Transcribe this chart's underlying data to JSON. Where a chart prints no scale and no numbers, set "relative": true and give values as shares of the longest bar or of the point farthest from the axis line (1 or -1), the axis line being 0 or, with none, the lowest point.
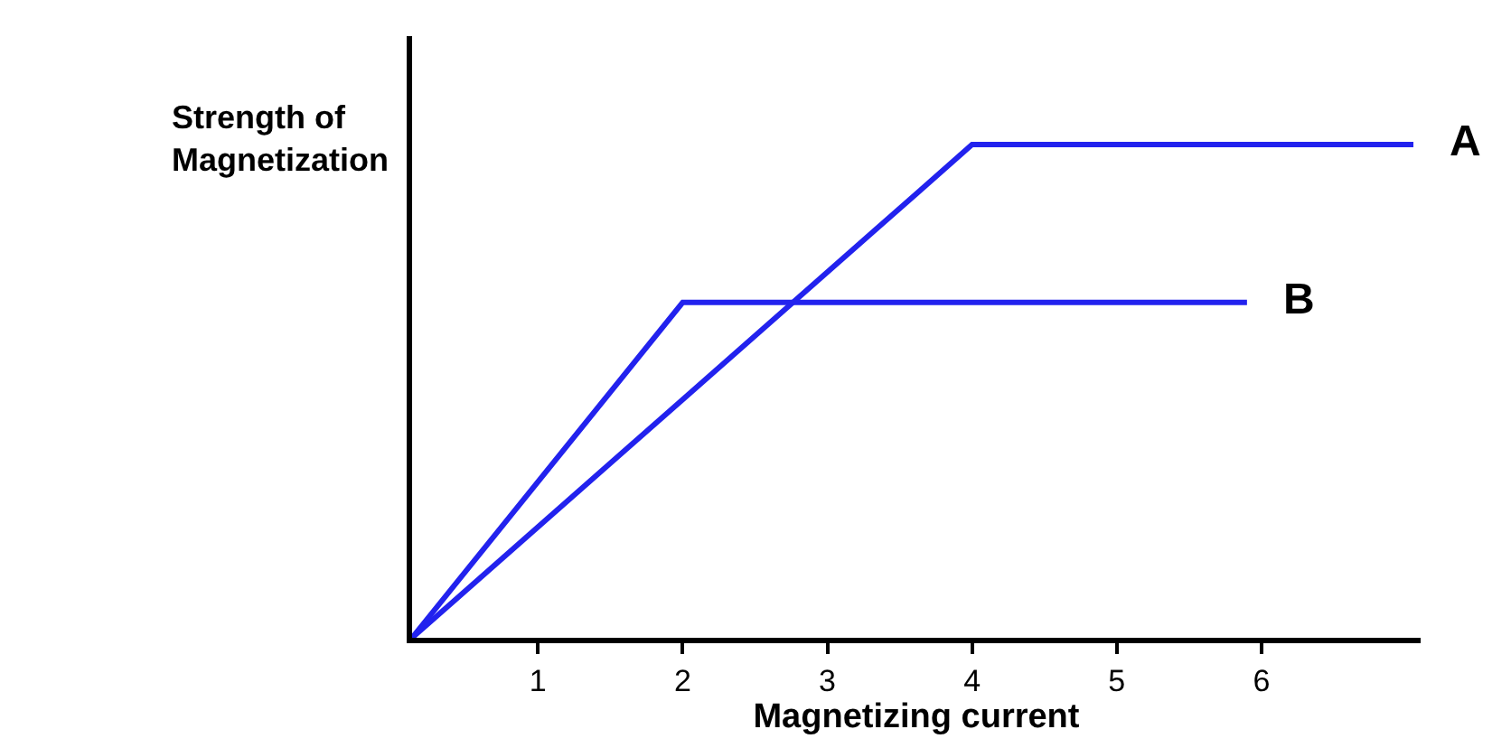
{
  "chart_data": {
    "type": "line",
    "relative": true,
    "xlabel": "Magnetizing current",
    "ylabel": "Strength of Magnetization",
    "xlim": [
      0.13,
      7.1
    ],
    "xticks": [
      1,
      2,
      3,
      4,
      5,
      6
    ],
    "legend": false,
    "marker": "none",
    "line_style": "solid",
    "series": [
      {
        "name": "A",
        "color": "#2222ee",
        "x": [
          0.13,
          4,
          7.05
        ],
        "values": [
          0,
          1,
          1
        ]
      },
      {
        "name": "B",
        "color": "#2222ee",
        "x": [
          0.13,
          2,
          5.9
        ],
        "values": [
          0,
          0.68,
          0.68
        ]
      }
    ]
  }
}
